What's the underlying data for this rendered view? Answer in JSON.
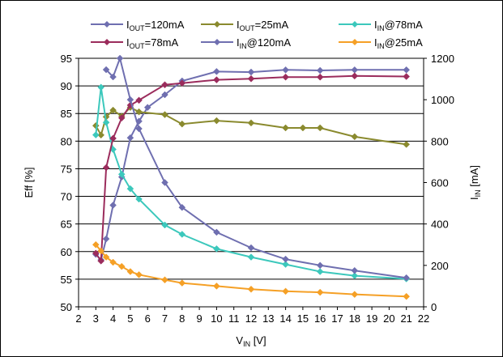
{
  "chart_data": {
    "type": "line",
    "xlabel": {
      "base": "V",
      "sub": "IN",
      "tail": " [V]"
    },
    "ylabel_left": "Eff [%]",
    "ylabel_right": {
      "base": "I",
      "sub": "IN",
      "tail": " [mA]"
    },
    "xlim": [
      2,
      22
    ],
    "ylim_left": [
      50,
      95
    ],
    "ylim_right": [
      0,
      1200
    ],
    "x_ticks": [
      "2",
      "3",
      "4",
      "5",
      "6",
      "7",
      "8",
      "9",
      "10",
      "11",
      "12",
      "13",
      "14",
      "15",
      "16",
      "17",
      "18",
      "19",
      "20",
      "21",
      "22"
    ],
    "y_left_ticks": [
      "50",
      "55",
      "60",
      "65",
      "70",
      "75",
      "80",
      "85",
      "90",
      "95"
    ],
    "y_right_ticks": [
      "0",
      "200",
      "400",
      "600",
      "800",
      "1000",
      "1200"
    ],
    "grid": {
      "horizontal": true,
      "vertical": false
    },
    "legend_position": "top",
    "series": [
      {
        "legend": {
          "base": "I",
          "sub": "OUT",
          "tail": "=120mA"
        },
        "color": "#6f6fb0",
        "axis": "left",
        "x": [
          3,
          3.3,
          3.6,
          4,
          4.5,
          5,
          5.5,
          6,
          7,
          8,
          10,
          12,
          14,
          16,
          18,
          21
        ],
        "y": [
          59.5,
          58.5,
          62.3,
          68.4,
          73.5,
          80.6,
          83.6,
          86.1,
          88.4,
          90.9,
          92.6,
          92.5,
          92.9,
          92.8,
          92.9,
          92.9
        ]
      },
      {
        "legend": {
          "base": "I",
          "sub": "OUT",
          "tail": "=25mA"
        },
        "color": "#8a8a2e",
        "axis": "left",
        "x": [
          3,
          3.3,
          3.6,
          4,
          4.5,
          5,
          5.5,
          7,
          8,
          10,
          12,
          14,
          15,
          16,
          18,
          21
        ],
        "y": [
          82.8,
          81.1,
          84.4,
          85.6,
          84.5,
          86.1,
          85.3,
          84.8,
          83.1,
          83.7,
          83.3,
          82.4,
          82.4,
          82.4,
          80.8,
          79.4
        ]
      },
      {
        "legend": {
          "base": "I",
          "sub": "IN",
          "tail": "@78mA"
        },
        "color": "#3cc8bc",
        "axis": "right",
        "x": [
          3,
          3.3,
          3.6,
          4,
          4.5,
          5,
          5.5,
          7,
          8,
          10,
          12,
          14,
          16,
          18,
          21
        ],
        "y": [
          830,
          1060,
          890,
          760,
          640,
          570,
          520,
          395,
          350,
          280,
          240,
          205,
          170,
          150,
          135
        ]
      },
      {
        "legend": {
          "base": "I",
          "sub": "OUT",
          "tail": "=78mA"
        },
        "color": "#9b2c5c",
        "axis": "left",
        "x": [
          3,
          3.3,
          3.6,
          4,
          4.5,
          5,
          5.5,
          7,
          8,
          10,
          12,
          14,
          16,
          18,
          21
        ],
        "y": [
          59.7,
          58.3,
          75.2,
          80.5,
          84.2,
          86.5,
          87.4,
          90.2,
          90.5,
          91.1,
          91.3,
          91.6,
          91.6,
          91.8,
          91.7
        ]
      },
      {
        "legend": {
          "base": "I",
          "sub": "IN",
          "tail": "@120mA"
        },
        "color": "#6f6fb0",
        "axis": "right",
        "x": [
          3.6,
          4,
          4.4,
          5,
          5.5,
          7,
          8,
          10,
          12,
          14,
          16,
          18,
          21
        ],
        "y": [
          1145,
          1110,
          1200,
          1000,
          860,
          600,
          480,
          360,
          285,
          230,
          200,
          175,
          140
        ]
      },
      {
        "legend": {
          "base": "I",
          "sub": "IN",
          "tail": "@25mA"
        },
        "color": "#f5a026",
        "axis": "right",
        "x": [
          3,
          3.3,
          3.6,
          4,
          4.5,
          5,
          5.5,
          7,
          8,
          10,
          12,
          14,
          16,
          18,
          21
        ],
        "y": [
          300,
          270,
          240,
          215,
          195,
          170,
          155,
          130,
          115,
          100,
          85,
          75,
          70,
          60,
          50
        ]
      }
    ]
  }
}
